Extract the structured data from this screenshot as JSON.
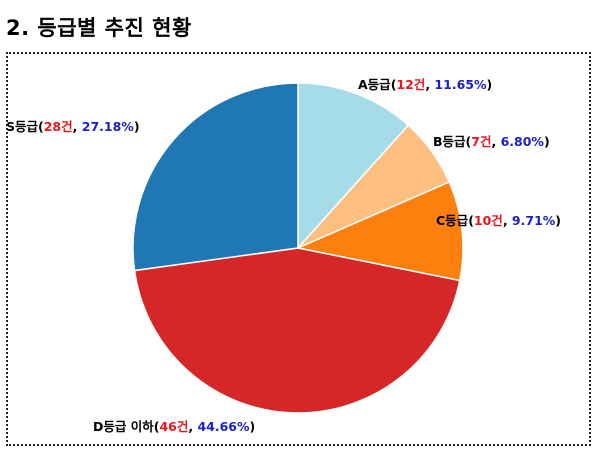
{
  "header": {
    "title": "2. 등급별 추진 현황"
  },
  "chart_data": {
    "type": "pie",
    "title": "",
    "slices": [
      {
        "label": "A등급",
        "count": "12건",
        "percent": "11.65%",
        "value": 11.65,
        "color": "#a6dbe8"
      },
      {
        "label": "B등급",
        "count": "7건",
        "percent": "6.80%",
        "value": 6.8,
        "color": "#fdbf7f"
      },
      {
        "label": "C등급",
        "count": "10건",
        "percent": "9.71%",
        "value": 9.71,
        "color": "#fd7f0e"
      },
      {
        "label": "D등급 이하",
        "count": "46건",
        "percent": "44.66%",
        "value": 44.66,
        "color": "#d62728"
      },
      {
        "label": "S등급",
        "count": "28건",
        "percent": "27.18%",
        "value": 27.18,
        "color": "#1f77b4"
      }
    ],
    "start_angle": "12 o'clock",
    "direction": "clockwise",
    "label_colors": {
      "name": "#000000",
      "count": "#e8151b",
      "percent": "#1a21c9",
      "punctuation": "#000000"
    }
  }
}
